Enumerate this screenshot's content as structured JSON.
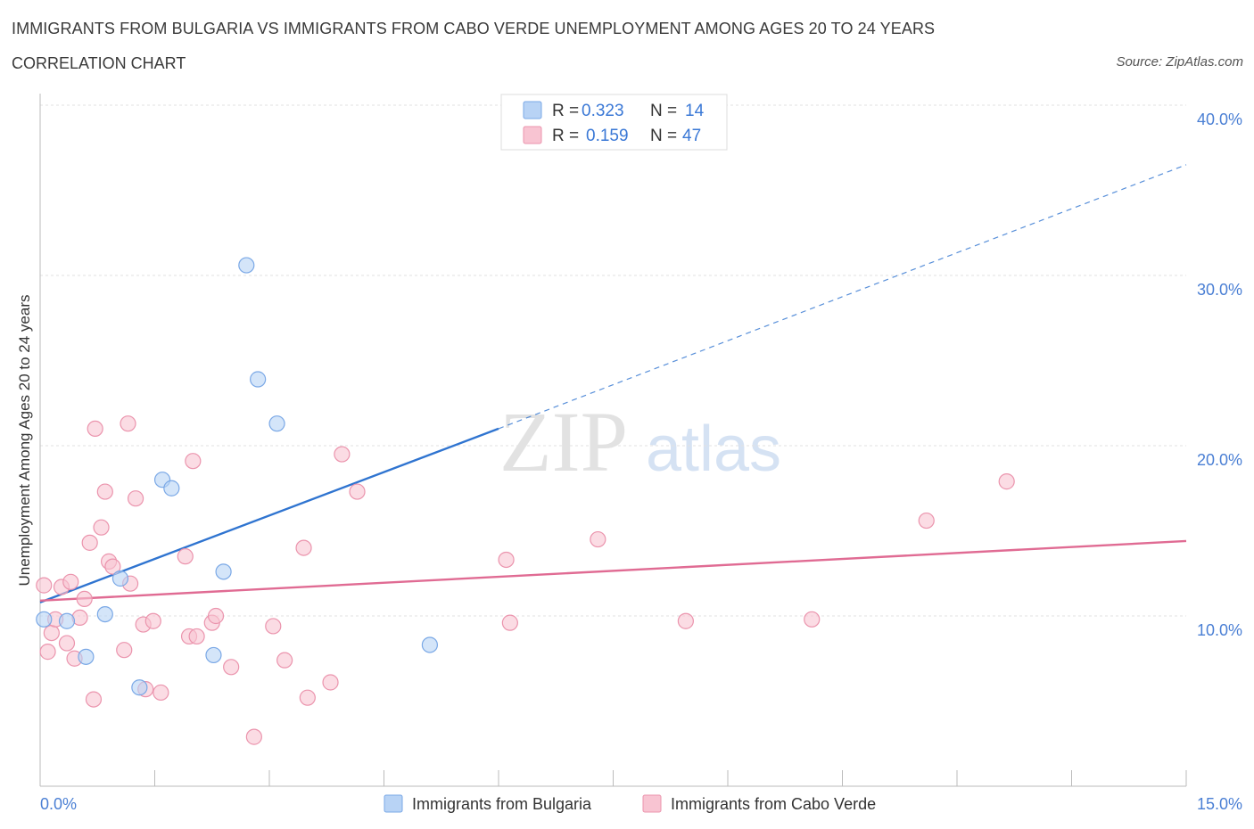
{
  "title": "IMMIGRANTS FROM BULGARIA VS IMMIGRANTS FROM CABO VERDE UNEMPLOYMENT AMONG AGES 20 TO 24 YEARS",
  "subtitle": "CORRELATION CHART",
  "source": "Source: ZipAtlas.com",
  "watermark": {
    "zip": "ZIP",
    "atlas": "atlas"
  },
  "legend": {
    "r_label": "R =",
    "n_label": "N =",
    "rows": [
      {
        "r": "0.323",
        "n": "14"
      },
      {
        "r": "0.159",
        "n": "47"
      }
    ]
  },
  "colors": {
    "bulgaria_fill": "#b8d3f5",
    "bulgaria_stroke": "#7aa8e6",
    "bulgaria_line": "#2f74d0",
    "caboverde_fill": "#f8c4d2",
    "caboverde_stroke": "#eb94ad",
    "caboverde_line": "#e06b93"
  },
  "chart_data": {
    "type": "scatter",
    "title": "IMMIGRANTS FROM BULGARIA VS IMMIGRANTS FROM CABO VERDE UNEMPLOYMENT AMONG AGES 20 TO 24 YEARS",
    "ylabel": "Unemployment Among Ages 20 to 24 years",
    "xlim": [
      0,
      15
    ],
    "ylim": [
      0,
      40
    ],
    "x_tick_labels": [
      "0.0%",
      "15.0%"
    ],
    "y_ticks": [
      10,
      20,
      30,
      40
    ],
    "y_tick_labels": [
      "10.0%",
      "20.0%",
      "30.0%",
      "40.0%"
    ],
    "grid": true,
    "series": [
      {
        "name": "Immigrants from Bulgaria",
        "points": [
          [
            0.05,
            9.8
          ],
          [
            0.35,
            9.7
          ],
          [
            0.6,
            7.6
          ],
          [
            0.85,
            10.1
          ],
          [
            1.05,
            12.2
          ],
          [
            1.3,
            5.8
          ],
          [
            1.6,
            18.0
          ],
          [
            1.72,
            17.5
          ],
          [
            2.27,
            7.7
          ],
          [
            2.4,
            12.6
          ],
          [
            2.7,
            30.6
          ],
          [
            2.85,
            23.9
          ],
          [
            3.1,
            21.3
          ],
          [
            5.1,
            8.3
          ]
        ],
        "trend": {
          "x0": 0.0,
          "y0": 10.8,
          "x1": 6.0,
          "y1": 21.0,
          "dash_to_x": 15.0,
          "dash_to_y": 36.5
        }
      },
      {
        "name": "Immigrants from Cabo Verde",
        "points": [
          [
            0.05,
            11.8
          ],
          [
            0.1,
            7.9
          ],
          [
            0.15,
            9.0
          ],
          [
            0.2,
            9.8
          ],
          [
            0.28,
            11.7
          ],
          [
            0.35,
            8.4
          ],
          [
            0.4,
            12.0
          ],
          [
            0.45,
            7.5
          ],
          [
            0.52,
            9.9
          ],
          [
            0.58,
            11.0
          ],
          [
            0.65,
            14.3
          ],
          [
            0.7,
            5.1
          ],
          [
            0.72,
            21.0
          ],
          [
            0.8,
            15.2
          ],
          [
            0.85,
            17.3
          ],
          [
            0.9,
            13.2
          ],
          [
            0.95,
            12.9
          ],
          [
            1.1,
            8.0
          ],
          [
            1.15,
            21.3
          ],
          [
            1.18,
            11.9
          ],
          [
            1.25,
            16.9
          ],
          [
            1.35,
            9.5
          ],
          [
            1.38,
            5.7
          ],
          [
            1.48,
            9.7
          ],
          [
            1.58,
            5.5
          ],
          [
            1.9,
            13.5
          ],
          [
            1.95,
            8.8
          ],
          [
            2.0,
            19.1
          ],
          [
            2.05,
            8.8
          ],
          [
            2.25,
            9.6
          ],
          [
            2.3,
            10.0
          ],
          [
            2.5,
            7.0
          ],
          [
            2.8,
            2.9
          ],
          [
            3.05,
            9.4
          ],
          [
            3.2,
            7.4
          ],
          [
            3.45,
            14.0
          ],
          [
            3.5,
            5.2
          ],
          [
            3.8,
            6.1
          ],
          [
            3.95,
            19.5
          ],
          [
            4.15,
            17.3
          ],
          [
            6.1,
            13.3
          ],
          [
            6.15,
            9.6
          ],
          [
            7.3,
            14.5
          ],
          [
            8.45,
            9.7
          ],
          [
            10.1,
            9.8
          ],
          [
            11.6,
            15.6
          ],
          [
            12.65,
            17.9
          ]
        ],
        "trend": {
          "x0": 0.0,
          "y0": 10.9,
          "x1": 15.0,
          "y1": 14.4
        }
      }
    ]
  }
}
